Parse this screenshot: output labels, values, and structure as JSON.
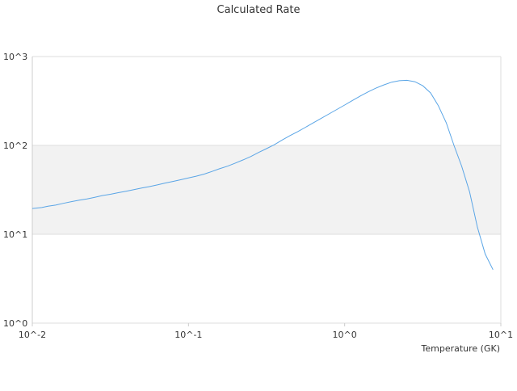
{
  "chart_data": {
    "type": "line",
    "title": "Calculated Rate",
    "xlabel": "Temperature (GK)",
    "ylabel": "",
    "xscale": "log",
    "yscale": "log",
    "xlim": [
      0.01,
      10
    ],
    "ylim": [
      1,
      1000
    ],
    "x_ticks": [
      "10^-2",
      "10^-1",
      "10^0",
      "10^1"
    ],
    "y_ticks": [
      "10^0",
      "10^1",
      "10^2",
      "10^3"
    ],
    "grid": true,
    "alternating_band": "between 10^1 and 10^2",
    "legend": "none",
    "colors": {
      "line": "#5aa5e6",
      "band": "#f2f2f2",
      "grid": "#dddddd",
      "axis": "#cccccc"
    },
    "series": [
      {
        "x": [
          0.01,
          0.0115,
          0.0126,
          0.0141,
          0.0158,
          0.0178,
          0.02,
          0.0224,
          0.0251,
          0.0282,
          0.0316,
          0.0355,
          0.0398,
          0.0447,
          0.0501,
          0.0562,
          0.0631,
          0.0708,
          0.0794,
          0.0891,
          0.1,
          0.112,
          0.126,
          0.141,
          0.158,
          0.178,
          0.2,
          0.224,
          0.251,
          0.282,
          0.316,
          0.355,
          0.398,
          0.447,
          0.501,
          0.562,
          0.631,
          0.708,
          0.794,
          0.891,
          1.0,
          1.12,
          1.26,
          1.41,
          1.58,
          1.78,
          2.0,
          2.24,
          2.51,
          2.82,
          3.16,
          3.55,
          3.98,
          4.47,
          5.01,
          5.62,
          6.31,
          7.08,
          7.94,
          8.91
        ],
        "y": [
          19.5,
          20.0,
          20.7,
          21.3,
          22.3,
          23.3,
          24.2,
          25.0,
          26.1,
          27.3,
          28.2,
          29.4,
          30.5,
          31.8,
          33.1,
          34.4,
          35.9,
          37.7,
          39.3,
          41.1,
          43.0,
          45.0,
          47.6,
          50.9,
          54.6,
          58.4,
          63.3,
          68.7,
          75.0,
          83.5,
          92.0,
          102,
          115,
          129,
          143,
          160,
          180,
          202,
          226,
          254,
          285,
          320,
          360,
          400,
          440,
          480,
          515,
          535,
          540,
          520,
          470,
          390,
          280,
          180,
          100,
          58,
          30,
          12,
          6.0,
          4.0
        ]
      }
    ]
  }
}
